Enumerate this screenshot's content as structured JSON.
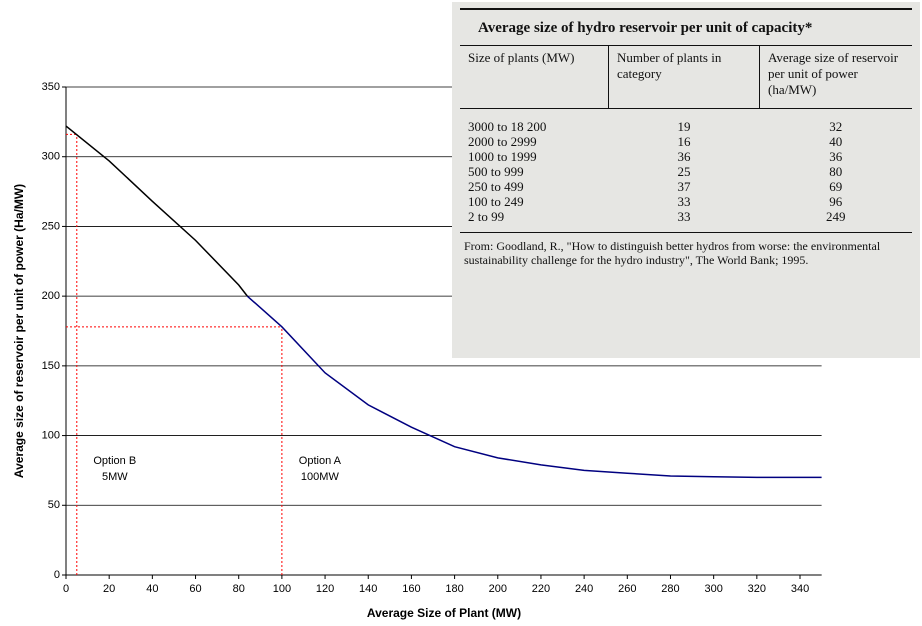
{
  "chart_data": {
    "type": "line",
    "x_label": "Average Size of Plant (MW)",
    "y_label": "Average size of reservoir per unit of power (Ha/MW)",
    "x": [
      0,
      20,
      40,
      60,
      80,
      84,
      100,
      120,
      140,
      160,
      180,
      200,
      220,
      240,
      260,
      280,
      300,
      320,
      340,
      350
    ],
    "series": [
      {
        "color": "#000000",
        "values": [
          322,
          297,
          268,
          240,
          208,
          200,
          null,
          null,
          null,
          null,
          null,
          null,
          null,
          null,
          null,
          null,
          null,
          null,
          null,
          null
        ]
      },
      {
        "color": "#000080",
        "values": [
          null,
          null,
          null,
          null,
          null,
          200,
          178,
          145,
          122,
          106,
          92,
          84,
          79,
          75,
          73,
          71,
          70.5,
          70,
          70,
          70
        ]
      }
    ],
    "xlim": [
      0,
      350
    ],
    "xticks": [
      0,
      20,
      40,
      60,
      80,
      100,
      120,
      140,
      160,
      180,
      200,
      220,
      240,
      260,
      280,
      300,
      320,
      340
    ],
    "ylim": [
      0,
      350
    ],
    "yticks": [
      0,
      50,
      100,
      150,
      200,
      250,
      300,
      350
    ],
    "grid": true,
    "references": [
      {
        "x": 5,
        "y": 316,
        "color": "#ff0000",
        "label": [
          "Option B",
          "5MW"
        ]
      },
      {
        "x": 100,
        "y": 178,
        "color": "#ff0000",
        "label": [
          "Option A",
          "100MW"
        ]
      }
    ]
  },
  "table": {
    "title": "Average size of hydro reservoir per unit of capacity*",
    "headers": [
      "Size of plants (MW)",
      "Number of plants in category",
      "Average size of reservoir per unit of power (ha/MW)"
    ],
    "rows": [
      [
        "3000 to 18 200",
        "19",
        "32"
      ],
      [
        "2000 to 2999",
        "16",
        "40"
      ],
      [
        "1000 to 1999",
        "36",
        "36"
      ],
      [
        "500 to 999",
        "25",
        "80"
      ],
      [
        "250 to 499",
        "37",
        "69"
      ],
      [
        "100 to 249",
        "33",
        "96"
      ],
      [
        "2 to 99",
        "33",
        "249"
      ]
    ],
    "source": "From: Goodland, R., \"How to distinguish better hydros from worse: the environmental sustainability challenge for the hydro industry\", The World Bank; 1995."
  }
}
